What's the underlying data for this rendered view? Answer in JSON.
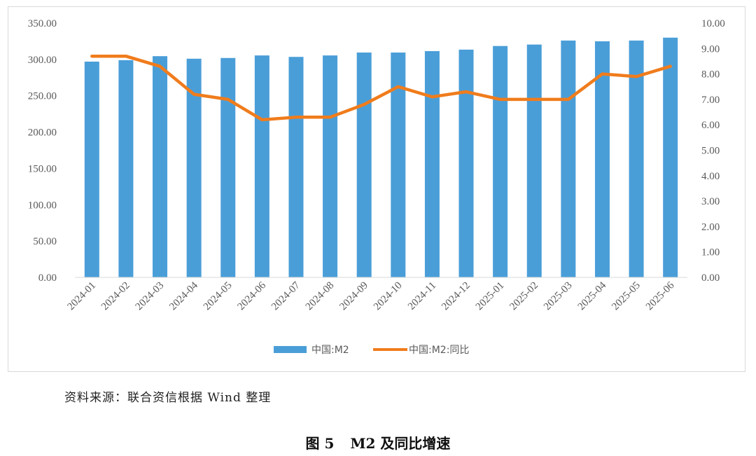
{
  "chart_data": {
    "type": "bar",
    "categories": [
      "2024-01",
      "2024-02",
      "2024-03",
      "2024-04",
      "2024-05",
      "2024-06",
      "2024-07",
      "2024-08",
      "2024-09",
      "2024-10",
      "2024-11",
      "2024-12",
      "2025-01",
      "2025-02",
      "2025-03",
      "2025-04",
      "2025-05",
      "2025-06"
    ],
    "series": [
      {
        "name": "中国:M2",
        "kind": "bar",
        "axis": "left",
        "color": "#4a9ed8",
        "values": [
          297.0,
          299.0,
          304.5,
          301.0,
          302.0,
          305.5,
          303.5,
          305.5,
          309.5,
          309.5,
          311.5,
          313.5,
          318.5,
          320.5,
          326.0,
          325.0,
          326.0,
          330.0
        ]
      },
      {
        "name": "中国:M2:同比",
        "kind": "line",
        "axis": "right",
        "color": "#f07c1c",
        "values": [
          8.7,
          8.7,
          8.3,
          7.2,
          7.0,
          6.2,
          6.3,
          6.3,
          6.8,
          7.5,
          7.1,
          7.3,
          7.0,
          7.0,
          7.0,
          8.0,
          7.9,
          8.3
        ]
      }
    ],
    "y_left": {
      "lim": [
        0,
        350
      ],
      "ticks": [
        "0.00",
        "50.00",
        "100.00",
        "150.00",
        "200.00",
        "250.00",
        "300.00",
        "350.00"
      ]
    },
    "y_right": {
      "lim": [
        0,
        10
      ],
      "ticks": [
        "0.00",
        "1.00",
        "2.00",
        "3.00",
        "4.00",
        "5.00",
        "6.00",
        "7.00",
        "8.00",
        "9.00",
        "10.00"
      ]
    },
    "grid": false,
    "legend_position": "bottom-center"
  },
  "source_note": "资料来源：联合资信根据 Wind 整理",
  "caption": {
    "label": "图 5",
    "text": "M2 及同比增速"
  }
}
